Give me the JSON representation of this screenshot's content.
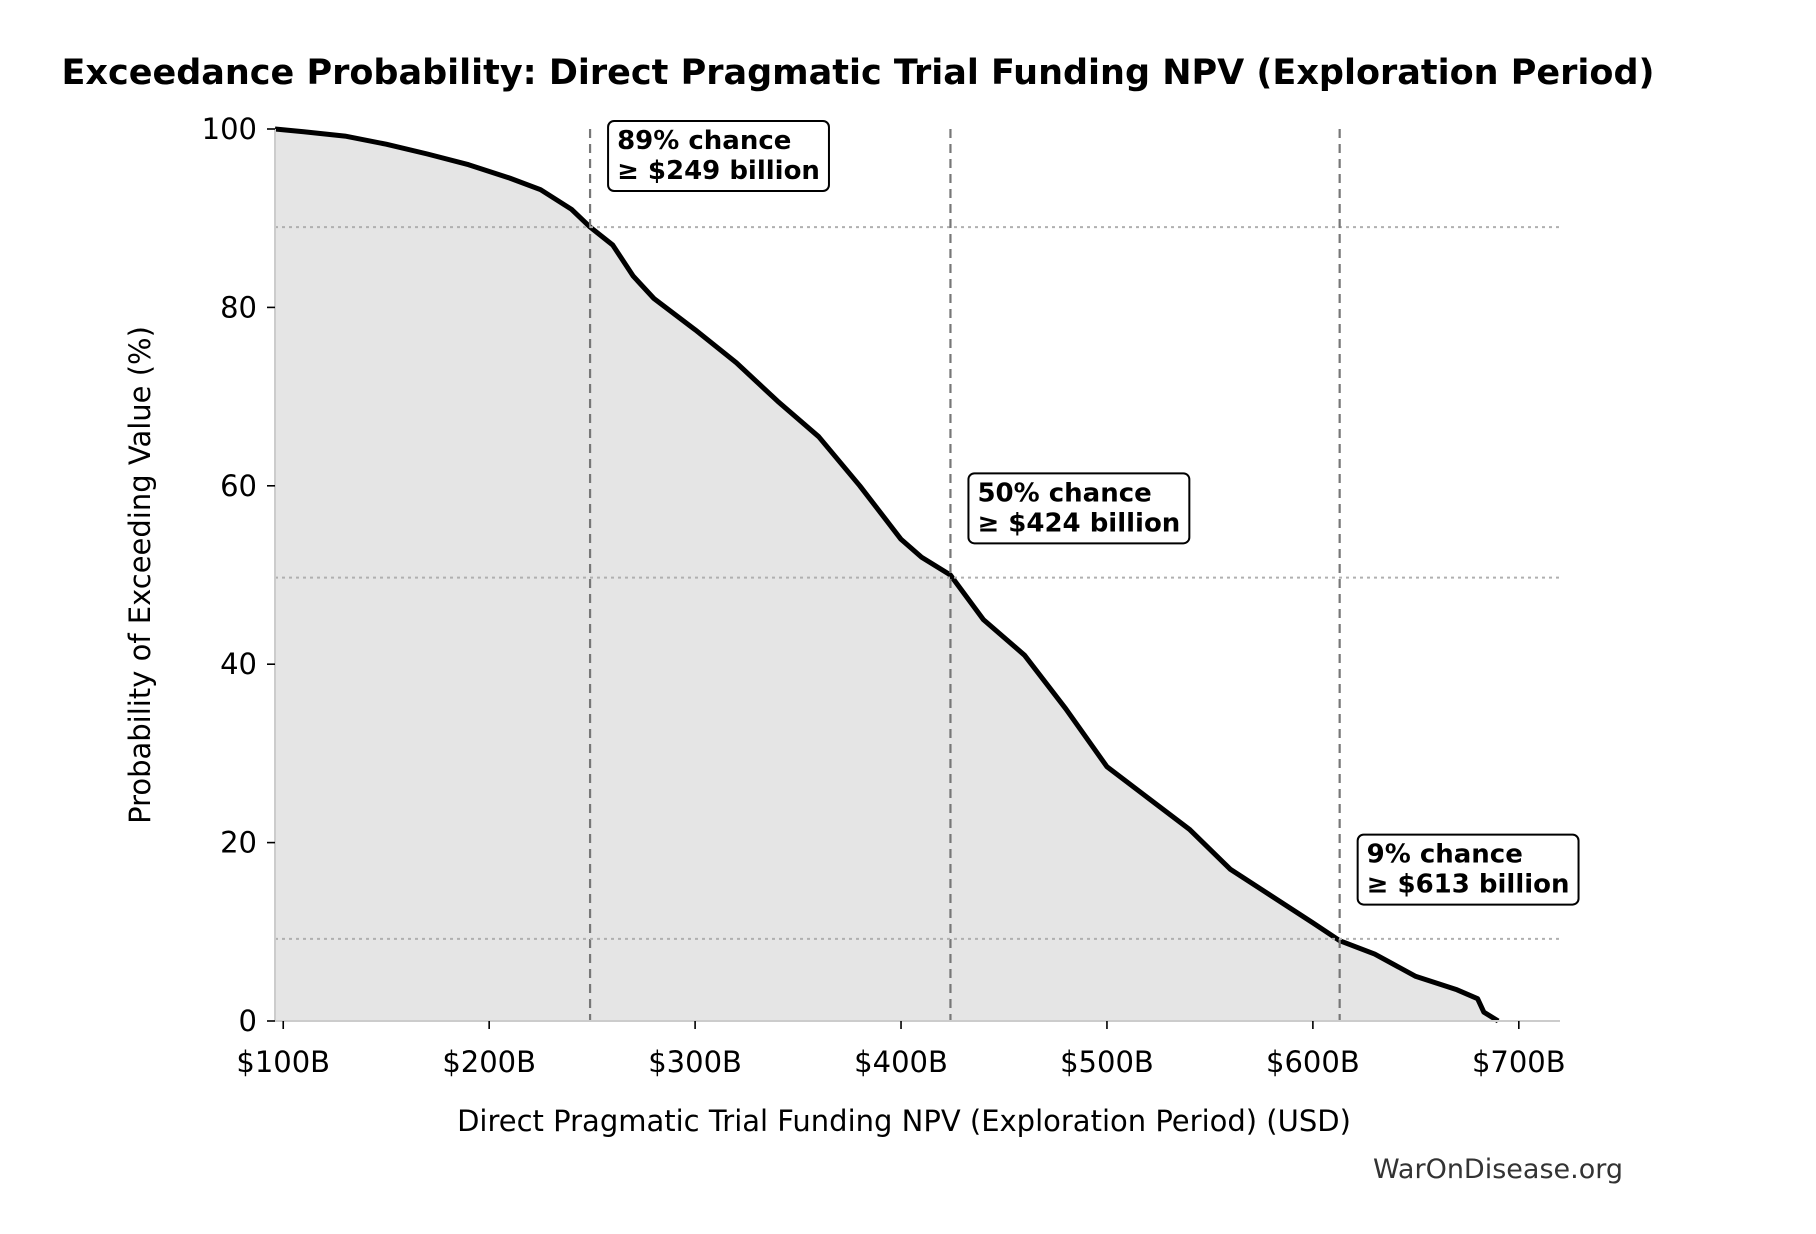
{
  "chart_data": {
    "type": "area",
    "title": "Exceedance Probability: Direct Pragmatic Trial Funding NPV (Exploration Period)",
    "xlabel": "Direct Pragmatic Trial Funding NPV (Exploration Period) (USD)",
    "ylabel": "Probability of Exceeding Value (%)",
    "xlim": [
      96,
      720
    ],
    "ylim": [
      0,
      100
    ],
    "x_ticks": [
      {
        "value": 100,
        "label": "$100B"
      },
      {
        "value": 200,
        "label": "$200B"
      },
      {
        "value": 300,
        "label": "$300B"
      },
      {
        "value": 400,
        "label": "$400B"
      },
      {
        "value": 500,
        "label": "$500B"
      },
      {
        "value": 600,
        "label": "$600B"
      },
      {
        "value": 700,
        "label": "$700B"
      }
    ],
    "y_ticks": [
      {
        "value": 0,
        "label": "0"
      },
      {
        "value": 20,
        "label": "20"
      },
      {
        "value": 40,
        "label": "40"
      },
      {
        "value": 60,
        "label": "60"
      },
      {
        "value": 80,
        "label": "80"
      },
      {
        "value": 100,
        "label": "100"
      }
    ],
    "series": [
      {
        "x": [
          96,
          110,
          130,
          150,
          170,
          190,
          210,
          225,
          240,
          249,
          260,
          270,
          280,
          300,
          320,
          340,
          360,
          380,
          400,
          410,
          424,
          440,
          460,
          480,
          500,
          520,
          540,
          560,
          580,
          600,
          613,
          630,
          650,
          670,
          680,
          683,
          690
        ],
        "y": [
          100,
          99.7,
          99.2,
          98.3,
          97.2,
          96.0,
          94.5,
          93.2,
          91.0,
          89.0,
          87.0,
          83.5,
          81.0,
          77.5,
          73.8,
          69.5,
          65.5,
          60.0,
          54.0,
          52.0,
          50.0,
          45.0,
          41.0,
          35.0,
          28.5,
          25.0,
          21.5,
          17.0,
          14.0,
          11.0,
          9.0,
          7.5,
          5.0,
          3.5,
          2.5,
          1.0,
          0.0
        ],
        "color": "#000000",
        "fill": "#e5e5e5"
      }
    ],
    "reference_lines": [
      {
        "x": 249,
        "y": 89
      },
      {
        "x": 424,
        "y": 49.7
      },
      {
        "x": 613,
        "y": 9.2
      }
    ],
    "annotations": [
      {
        "line1": "89% chance",
        "line2": "≥ $249 billion",
        "x": 249,
        "y": 100
      },
      {
        "line1": "50% chance",
        "line2": "≥ $424 billion",
        "x": 424,
        "y": 60.5
      },
      {
        "line1": "9% chance",
        "line2": "≥ $613 billion",
        "x": 613,
        "y": 20.0
      }
    ],
    "grid": false,
    "watermark": "WarOnDisease.org"
  }
}
